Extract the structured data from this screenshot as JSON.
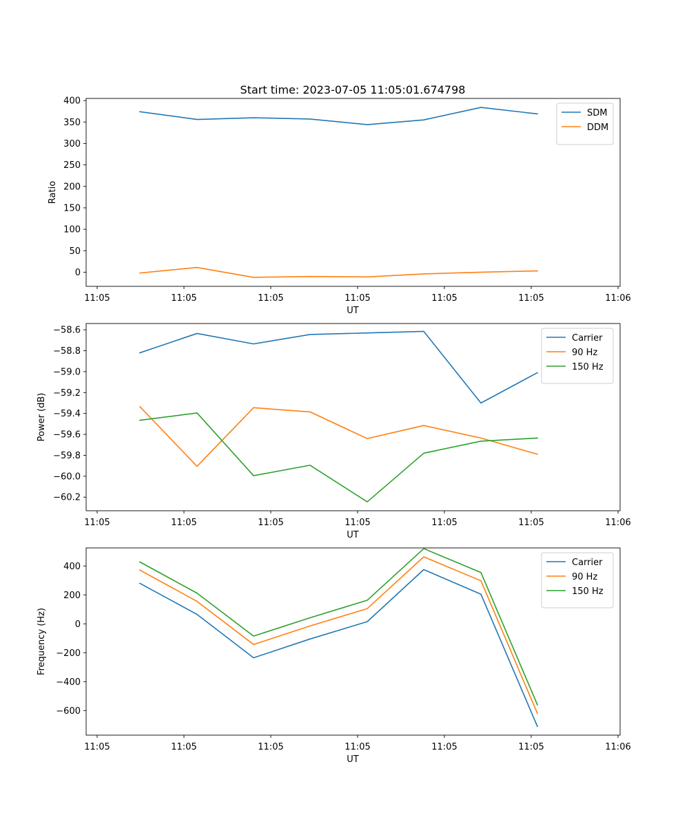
{
  "figure": {
    "title": "Start time: 2023-07-05 11:05:01.674798"
  },
  "x_axis": {
    "label": "UT",
    "tick_labels": [
      "11:05",
      "11:05",
      "11:05",
      "11:05",
      "11:05",
      "11:05",
      "11:06"
    ]
  },
  "chart_data": [
    {
      "type": "line",
      "ylabel": "Ratio",
      "xlabel": "UT",
      "ylim": [
        -33,
        405
      ],
      "yticks": [
        0,
        50,
        100,
        150,
        200,
        250,
        300,
        350,
        400
      ],
      "ytick_labels": [
        "0",
        "50",
        "100",
        "150",
        "200",
        "250",
        "300",
        "350",
        "400"
      ],
      "legend_position": "top-right",
      "series": [
        {
          "name": "SDM",
          "color": "#1f77b4",
          "values": [
            374,
            356,
            360,
            357,
            344,
            355,
            384,
            369
          ]
        },
        {
          "name": "DDM",
          "color": "#ff7f0e",
          "values": [
            -2,
            11,
            -12,
            -10,
            -11,
            -4,
            0,
            3
          ]
        }
      ]
    },
    {
      "type": "line",
      "ylabel": "Power (dB)",
      "xlabel": "UT",
      "ylim": [
        -60.33,
        -58.54
      ],
      "yticks": [
        -58.6,
        -58.8,
        -59.0,
        -59.2,
        -59.4,
        -59.6,
        -59.8,
        -60.0,
        -60.2
      ],
      "ytick_labels": [
        "−58.6",
        "−58.8",
        "−59.0",
        "−59.2",
        "−59.4",
        "−59.6",
        "−59.8",
        "−60.0",
        "−60.2"
      ],
      "legend_position": "top-right",
      "series": [
        {
          "name": "Carrier",
          "color": "#1f77b4",
          "values": [
            -58.82,
            -58.635,
            -58.735,
            -58.645,
            -58.63,
            -58.615,
            -59.3,
            -59.01
          ]
        },
        {
          "name": "90 Hz",
          "color": "#ff7f0e",
          "values": [
            -59.335,
            -59.905,
            -59.345,
            -59.385,
            -59.64,
            -59.515,
            -59.635,
            -59.79
          ]
        },
        {
          "name": "150 Hz",
          "color": "#2ca02c",
          "values": [
            -59.465,
            -59.395,
            -59.995,
            -59.895,
            -60.245,
            -59.78,
            -59.665,
            -59.635
          ]
        }
      ]
    },
    {
      "type": "line",
      "ylabel": "Frequency (Hz)",
      "xlabel": "UT",
      "ylim": [
        -770,
        525
      ],
      "yticks": [
        400,
        200,
        0,
        -200,
        -400,
        -600
      ],
      "ytick_labels": [
        "400",
        "200",
        "0",
        "−200",
        "−400",
        "−600"
      ],
      "legend_position": "top-right",
      "series": [
        {
          "name": "Carrier",
          "color": "#1f77b4",
          "values": [
            280,
            65,
            -235,
            -105,
            15,
            375,
            205,
            -710
          ]
        },
        {
          "name": "90 Hz",
          "color": "#ff7f0e",
          "values": [
            372,
            155,
            -143,
            -15,
            105,
            463,
            298,
            -620
          ]
        },
        {
          "name": "150 Hz",
          "color": "#2ca02c",
          "values": [
            428,
            212,
            -85,
            42,
            163,
            520,
            355,
            -560
          ]
        }
      ]
    }
  ]
}
